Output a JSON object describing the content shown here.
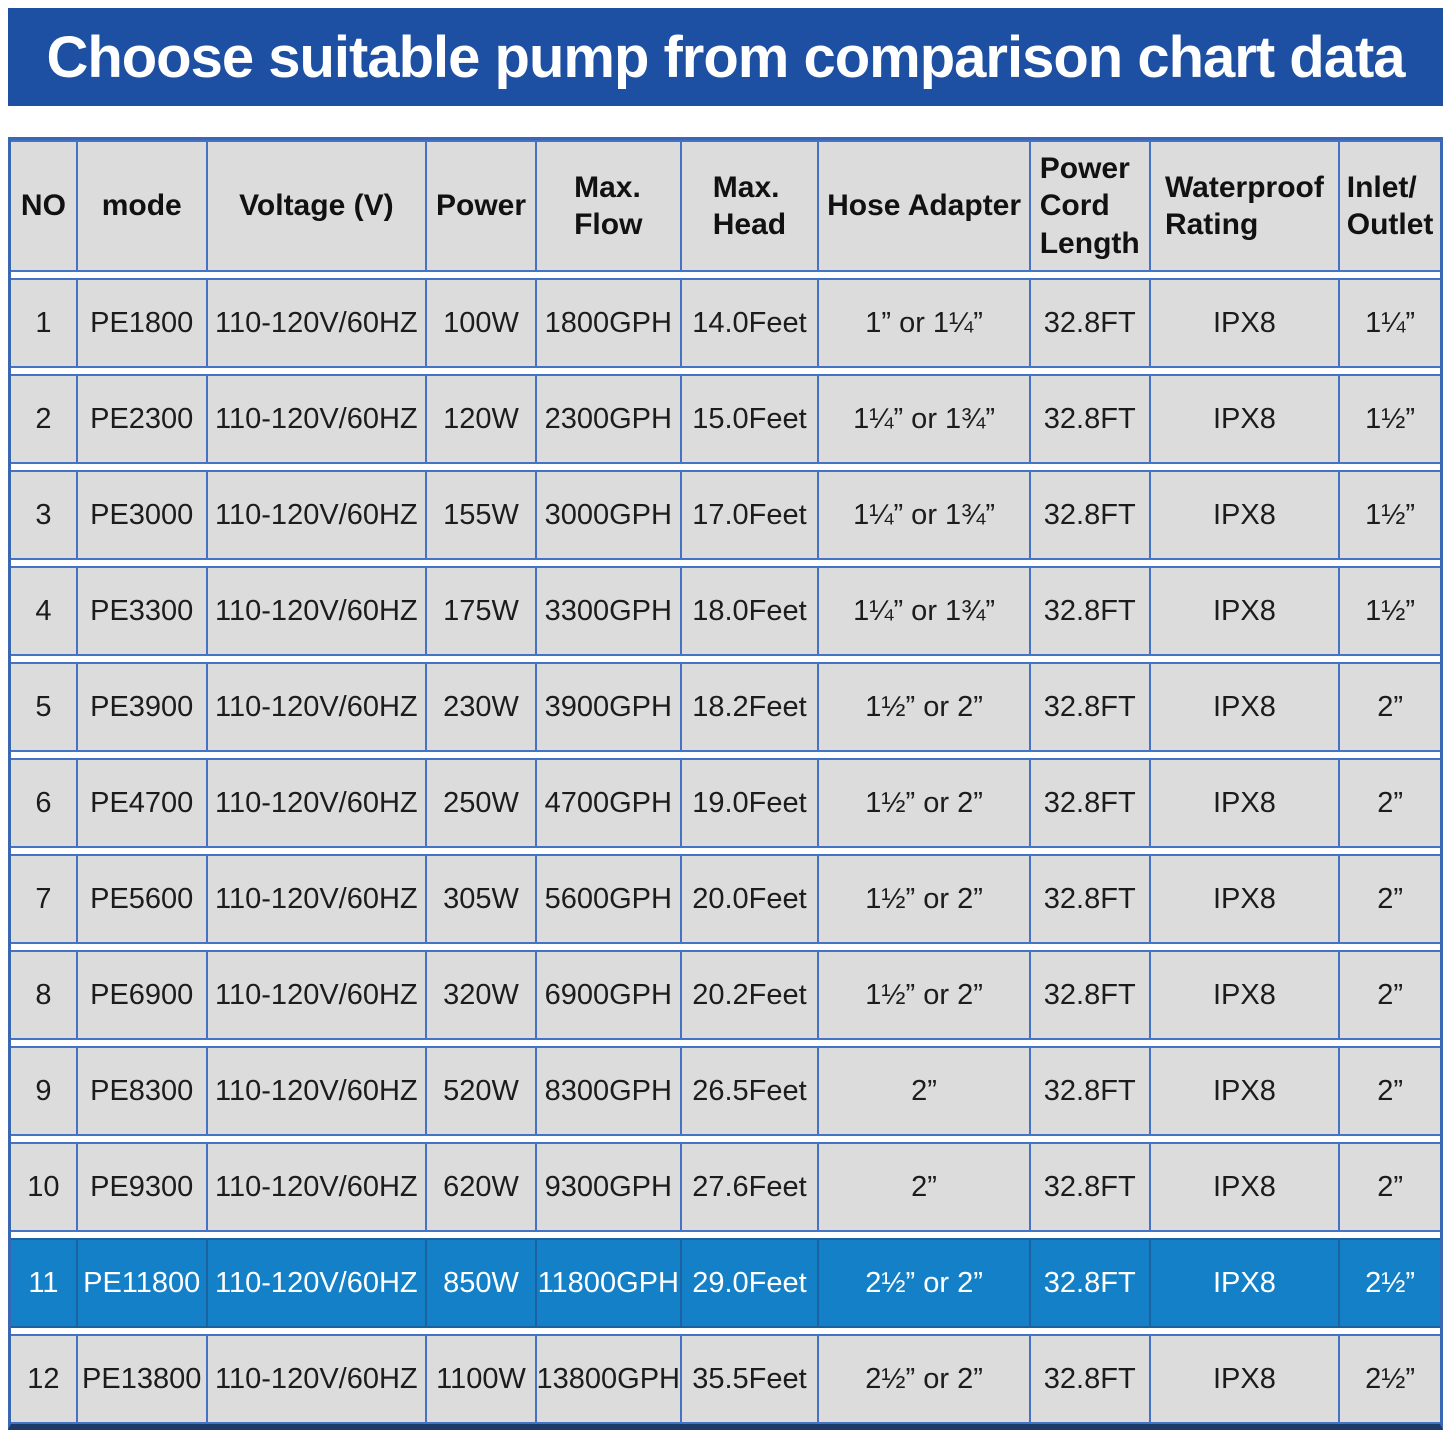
{
  "banner": {
    "title": "Choose suitable pump from comparison chart data"
  },
  "table": {
    "columns": [
      "NO",
      "mode",
      "Voltage (V)",
      "Power",
      "Max.\nFlow",
      "Max.\nHead",
      "Hose Adapter",
      "Power\nCord\nLength",
      "Waterproof\nRating",
      "Inlet/\nOutlet"
    ],
    "rows": [
      [
        "1",
        "PE1800",
        "110-120V/60HZ",
        "100W",
        "1800GPH",
        "14.0Feet",
        "1” or 1¼”",
        "32.8FT",
        "IPX8",
        "1¼”"
      ],
      [
        "2",
        "PE2300",
        "110-120V/60HZ",
        "120W",
        "2300GPH",
        "15.0Feet",
        "1¼” or 1¾”",
        "32.8FT",
        "IPX8",
        "1½”"
      ],
      [
        "3",
        "PE3000",
        "110-120V/60HZ",
        "155W",
        "3000GPH",
        "17.0Feet",
        "1¼” or 1¾”",
        "32.8FT",
        "IPX8",
        "1½”"
      ],
      [
        "4",
        "PE3300",
        "110-120V/60HZ",
        "175W",
        "3300GPH",
        "18.0Feet",
        "1¼” or 1¾”",
        "32.8FT",
        "IPX8",
        "1½”"
      ],
      [
        "5",
        "PE3900",
        "110-120V/60HZ",
        "230W",
        "3900GPH",
        "18.2Feet",
        "1½” or 2”",
        "32.8FT",
        "IPX8",
        "2”"
      ],
      [
        "6",
        "PE4700",
        "110-120V/60HZ",
        "250W",
        "4700GPH",
        "19.0Feet",
        "1½” or 2”",
        "32.8FT",
        "IPX8",
        "2”"
      ],
      [
        "7",
        "PE5600",
        "110-120V/60HZ",
        "305W",
        "5600GPH",
        "20.0Feet",
        "1½” or 2”",
        "32.8FT",
        "IPX8",
        "2”"
      ],
      [
        "8",
        "PE6900",
        "110-120V/60HZ",
        "320W",
        "6900GPH",
        "20.2Feet",
        "1½” or 2”",
        "32.8FT",
        "IPX8",
        "2”"
      ],
      [
        "9",
        "PE8300",
        "110-120V/60HZ",
        "520W",
        "8300GPH",
        "26.5Feet",
        "2”",
        "32.8FT",
        "IPX8",
        "2”"
      ],
      [
        "10",
        "PE9300",
        "110-120V/60HZ",
        "620W",
        "9300GPH",
        "27.6Feet",
        "2”",
        "32.8FT",
        "IPX8",
        "2”"
      ],
      [
        "11",
        "PE11800",
        "110-120V/60HZ",
        "850W",
        "11800GPH",
        "29.0Feet",
        "2½” or 2”",
        "32.8FT",
        "IPX8",
        "2½”"
      ],
      [
        "12",
        "PE13800",
        "110-120V/60HZ",
        "1100W",
        "13800GPH",
        "35.5Feet",
        "2½” or 2”",
        "32.8FT",
        "IPX8",
        "2½”"
      ]
    ],
    "highlighted_row_index": 10
  },
  "colors": {
    "banner_bg": "#1d4fa2",
    "banner_text": "#ffffff",
    "cell_bg": "#dcdcdc",
    "grid_line": "#4472c4",
    "outer_border": "#3a67b4",
    "bottom_border": "#1e3a66",
    "highlight_bg": "#1480c7",
    "highlight_text": "#ffffff"
  }
}
